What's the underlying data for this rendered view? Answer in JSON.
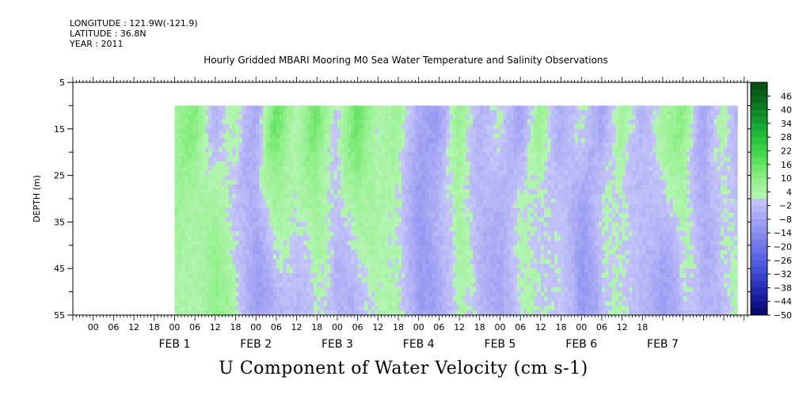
{
  "header": {
    "longitude": "LONGITUDE : 121.9W(-121.9)",
    "latitude": "LATITUDE : 36.8N",
    "year": "YEAR : 2011"
  },
  "chart_data": {
    "type": "heatmap",
    "title": "Hourly Gridded MBARI Mooring M0 Sea Water Temperature and Salinity Observations",
    "variable_label": "U Component of Water Velocity (cm s-1)",
    "ylabel": "DEPTH (m)",
    "ylim": [
      5,
      55
    ],
    "y_reversed": true,
    "y_ticks": [
      5,
      15,
      25,
      35,
      45,
      55
    ],
    "data_depth_range": [
      10,
      55
    ],
    "x_hour_ticks": [
      "00",
      "06",
      "12",
      "18",
      "00",
      "06",
      "12",
      "18",
      "00",
      "06",
      "12",
      "18",
      "00",
      "06",
      "12",
      "18",
      "00",
      "06",
      "12",
      "18",
      "00",
      "06",
      "12",
      "18",
      "00",
      "06",
      "12",
      "18"
    ],
    "x_day_labels": [
      "FEB 1",
      "FEB 2",
      "FEB 3",
      "FEB 4",
      "FEB 5",
      "FEB 6",
      "FEB 7"
    ],
    "x_range_hours": [
      -30,
      169
    ],
    "data_time_range_hours": [
      0,
      166
    ],
    "colorbar": {
      "ticks": [
        46,
        40,
        34,
        28,
        22,
        16,
        10,
        4,
        -2,
        -8,
        -14,
        -20,
        -26,
        -32,
        -38,
        -44,
        -50
      ],
      "min": -50,
      "max": 52,
      "step": 3,
      "positive_colormap": "green",
      "negative_colormap": "blue"
    },
    "approx_column_values_cm_s": {
      "comment_free_series_hours": [
        0,
        6,
        12,
        18,
        24,
        30,
        36,
        42,
        48,
        54,
        60,
        66,
        72,
        78,
        84,
        90,
        96,
        102,
        108,
        114,
        120,
        126,
        132,
        138,
        144,
        150,
        156,
        162,
        166
      ],
      "upper_10_25m": [
        6,
        12,
        -4,
        4,
        -8,
        16,
        2,
        14,
        -2,
        16,
        2,
        6,
        -6,
        -10,
        8,
        -4,
        2,
        -8,
        8,
        -6,
        2,
        -8,
        6,
        -4,
        4,
        10,
        -8,
        4,
        -4
      ],
      "lower_35_55m": [
        4,
        2,
        12,
        -2,
        -12,
        0,
        -4,
        4,
        -8,
        0,
        4,
        2,
        -14,
        -4,
        6,
        -6,
        -8,
        6,
        -2,
        2,
        -16,
        4,
        0,
        -4,
        -12,
        4,
        -8,
        2,
        4
      ]
    }
  }
}
